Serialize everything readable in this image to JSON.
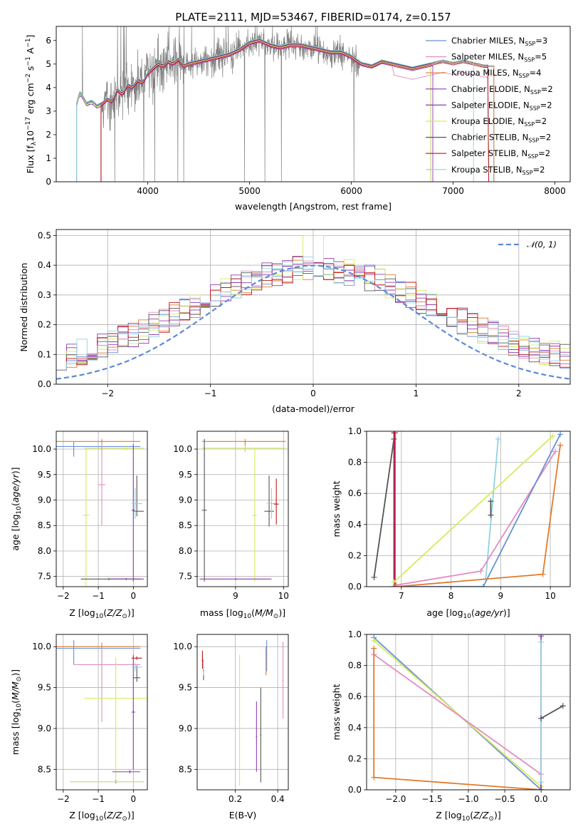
{
  "colors": {
    "Chabrier MILES": "#6a8fd8",
    "Salpeter MILES": "#e58ac0",
    "Kroupa MILES": "#e07b2a",
    "Chabrier ELODIE": "#8e3cb0",
    "Salpeter ELODIE": "#8e3cb0",
    "Kroupa ELODIE": "#d4ec5a",
    "Chabrier STELIB": "#555555",
    "Salpeter STELIB": "#c01515",
    "Kroupa STELIB": "#8fd2e2",
    "data": "#808080",
    "gauss": "#5b8ad8",
    "grid": "#b0b0b0"
  },
  "legend_series": [
    {
      "key": "Chabrier MILES",
      "label": "Chabrier MILES, N",
      "sub": "SSP",
      "n": "=3"
    },
    {
      "key": "Salpeter MILES",
      "label": "Salpeter MILES, N",
      "sub": "SSP",
      "n": "=5"
    },
    {
      "key": "Kroupa MILES",
      "label": "Kroupa MILES, N",
      "sub": "SSP",
      "n": "=4"
    },
    {
      "key": "Chabrier ELODIE",
      "label": "Chabrier ELODIE, N",
      "sub": "SSP",
      "n": "=2"
    },
    {
      "key": "Salpeter ELODIE",
      "label": "Salpeter ELODIE, N",
      "sub": "SSP",
      "n": "=2"
    },
    {
      "key": "Kroupa ELODIE",
      "label": "Kroupa ELODIE, N",
      "sub": "SSP",
      "n": "=2"
    },
    {
      "key": "Chabrier STELIB",
      "label": "Chabrier STELIB, N",
      "sub": "SSP",
      "n": "=2"
    },
    {
      "key": "Salpeter STELIB",
      "label": "Salpeter STELIB, N",
      "sub": "SSP",
      "n": "=2"
    },
    {
      "key": "Kroupa STELIB",
      "label": "Kroupa STELIB, N",
      "sub": "SSP",
      "n": "=2"
    }
  ],
  "chart_data": [
    {
      "type": "line",
      "id": "spectrum",
      "title": "PLATE=2111, MJD=53467, FIBERID=0174, z=0.157",
      "xlabel": "wavelength [Angstrom, rest frame]",
      "ylabel": "Flux [f",
      "ylabel_full": "Flux [fλ 10^-17 erg cm^-2 s^-1 A^-1]",
      "xlim": [
        3100,
        8150
      ],
      "ylim": [
        0,
        6.6
      ],
      "xticks": [
        4000,
        5000,
        6000,
        7000,
        8000
      ],
      "yticks": [
        0,
        1,
        2,
        3,
        4,
        5,
        6
      ],
      "grid": false,
      "legend_position": "upper right",
      "data_range": [
        3300,
        6080
      ],
      "model_x": [
        3300,
        3330,
        3360,
        3400,
        3450,
        3500,
        3550,
        3600,
        3650,
        3700,
        3750,
        3800,
        3850,
        3900,
        3950,
        4000,
        4050,
        4100,
        4150,
        4200,
        4250,
        4300,
        4350,
        4400,
        4500,
        4600,
        4700,
        4800,
        4900,
        5000,
        5100,
        5200,
        5300,
        5400,
        5500,
        5600,
        5700,
        5800,
        5900,
        6000,
        6100,
        6200,
        6300,
        6400,
        6500,
        6600,
        6700,
        6800,
        6900,
        7000,
        7100,
        7200,
        7300
      ],
      "model_y": [
        3.3,
        3.8,
        3.6,
        3.3,
        3.4,
        3.2,
        3.3,
        3.5,
        3.4,
        3.9,
        3.7,
        4.1,
        4.0,
        4.3,
        4.2,
        4.6,
        4.8,
        5.0,
        4.9,
        5.1,
        5.0,
        5.2,
        4.9,
        5.0,
        5.1,
        5.2,
        5.3,
        5.4,
        5.6,
        5.9,
        6.0,
        5.8,
        5.7,
        5.8,
        5.8,
        5.7,
        5.6,
        5.5,
        5.5,
        5.3,
        5.0,
        4.9,
        5.1,
        5.0,
        4.9,
        4.8,
        4.9,
        5.0,
        5.1,
        5.0,
        5.1,
        5.0,
        4.9
      ]
    },
    {
      "type": "area",
      "id": "residuals",
      "title": "",
      "xlabel": "(data-model)/error",
      "ylabel": "Normed distribution",
      "xlim": [
        -2.5,
        2.5
      ],
      "ylim": [
        0,
        0.52
      ],
      "xticks": [
        -2,
        -1,
        0,
        1,
        2
      ],
      "yticks": [
        0.0,
        0.1,
        0.2,
        0.3,
        0.4,
        0.5
      ],
      "grid": true,
      "legend": "N(0,1)",
      "legend_position": "upper right",
      "bin_width": 0.1
    },
    {
      "type": "scatter",
      "id": "age-vs-Z",
      "xlabel": "Z [log",
      "ylabel": "age  [log",
      "xlim": [
        -2.2,
        0.4
      ],
      "ylim": [
        7.3,
        10.35
      ],
      "xticks": [
        -2,
        -1,
        0
      ],
      "yticks": [
        7.5,
        8.0,
        8.5,
        9.0,
        9.5,
        10.0
      ],
      "grid": true
    },
    {
      "type": "scatter",
      "id": "age-vs-mass",
      "xlabel": "mass [log",
      "xlim": [
        8.2,
        10.1
      ],
      "ylim": [
        7.3,
        10.35
      ],
      "xticks": [
        9,
        10
      ],
      "yticks": [
        7.5,
        8.0,
        8.5,
        9.0,
        9.5,
        10.0
      ],
      "grid": true
    },
    {
      "type": "line",
      "id": "massweight-vs-age",
      "xlabel": "age  [log",
      "ylabel": "mass weight",
      "xlim": [
        6.3,
        10.4
      ],
      "ylim": [
        0,
        1
      ],
      "xticks": [
        7,
        8,
        9,
        10
      ],
      "yticks": [
        0.0,
        0.2,
        0.4,
        0.6,
        0.8,
        1.0
      ],
      "grid": true
    },
    {
      "type": "scatter",
      "id": "mass-vs-Z",
      "xlabel": "Z [log",
      "ylabel": "mass [log",
      "xlim": [
        -2.2,
        0.4
      ],
      "ylim": [
        8.25,
        10.15
      ],
      "xticks": [
        -2,
        -1,
        0
      ],
      "yticks": [
        8.5,
        9.0,
        9.5,
        10.0
      ],
      "grid": true
    },
    {
      "type": "scatter",
      "id": "mass-vs-EBV",
      "xlabel": "E(B-V)",
      "xlim": [
        0.02,
        0.45
      ],
      "ylim": [
        8.25,
        10.15
      ],
      "xticks": [
        0.2,
        0.4
      ],
      "yticks": [
        8.5,
        9.0,
        9.5,
        10.0
      ],
      "grid": true
    },
    {
      "type": "line",
      "id": "massweight-vs-Z",
      "xlabel": "Z [log",
      "ylabel": "mass weight",
      "xlim": [
        -2.4,
        0.4
      ],
      "ylim": [
        0,
        1
      ],
      "xticks": [
        -2.0,
        -1.5,
        -1.0,
        -0.5,
        0.0
      ],
      "yticks": [
        0.0,
        0.2,
        0.4,
        0.6,
        0.8,
        1.0
      ],
      "grid": true
    }
  ],
  "labels": {
    "p1_title": "PLATE=2111, MJD=53467, FIBERID=0174, z=0.157",
    "p1_xlabel": "wavelength [Angstrom, rest frame]",
    "p2_xlabel": "(data-model)/error",
    "p2_ylabel": "Normed distribution",
    "p2_legend": "N(0,1)",
    "mw_ylabel": "mass weight",
    "ebv_xlabel": "E(B-V)"
  }
}
